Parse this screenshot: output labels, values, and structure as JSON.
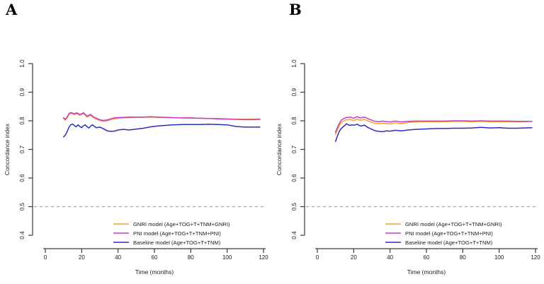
{
  "figure": {
    "background": "#ffffff",
    "panel_labels": [
      "A",
      "B"
    ]
  },
  "chart_data": [
    {
      "panel_label": "A",
      "type": "line",
      "title": "",
      "xlabel": "Time (months)",
      "ylabel": "Concordance index",
      "xlim": [
        0,
        120
      ],
      "ylim": [
        0.4,
        1.0
      ],
      "xticks": [
        0,
        20,
        40,
        60,
        80,
        100,
        120
      ],
      "yticks": [
        0.4,
        0.5,
        0.6,
        0.7,
        0.8,
        0.9,
        1.0
      ],
      "grid": false,
      "legend_position": "bottom-right",
      "reference_line": {
        "y": 0.5,
        "style": "dashed",
        "color": "#ababab"
      },
      "axis_color": "#3a3a3a",
      "x": [
        10,
        11,
        12,
        13,
        14,
        15,
        16,
        17,
        18,
        19,
        20,
        21,
        22,
        23,
        24,
        25,
        26,
        27,
        28,
        30,
        32,
        34,
        36,
        38,
        40,
        43,
        46,
        50,
        54,
        58,
        62,
        66,
        70,
        75,
        80,
        85,
        90,
        95,
        100,
        105,
        110,
        114,
        118
      ],
      "series": [
        {
          "name": "GNRI model (Age+TOG+T+TNM+GNRI)",
          "color": "#F7A229",
          "values": [
            0.808,
            0.802,
            0.81,
            0.822,
            0.826,
            0.824,
            0.821,
            0.825,
            0.823,
            0.819,
            0.822,
            0.825,
            0.819,
            0.813,
            0.817,
            0.819,
            0.813,
            0.809,
            0.806,
            0.801,
            0.798,
            0.8,
            0.804,
            0.807,
            0.809,
            0.81,
            0.811,
            0.812,
            0.812,
            0.813,
            0.812,
            0.811,
            0.811,
            0.81,
            0.809,
            0.809,
            0.808,
            0.808,
            0.807,
            0.806,
            0.806,
            0.806,
            0.807
          ]
        },
        {
          "name": "PNI model (Age+TOG+T+TNM+PNI)",
          "color": "#C73BC3",
          "values": [
            0.811,
            0.805,
            0.813,
            0.825,
            0.829,
            0.827,
            0.824,
            0.828,
            0.826,
            0.822,
            0.825,
            0.828,
            0.822,
            0.816,
            0.82,
            0.822,
            0.816,
            0.812,
            0.809,
            0.804,
            0.801,
            0.803,
            0.807,
            0.81,
            0.811,
            0.812,
            0.813,
            0.813,
            0.813,
            0.814,
            0.813,
            0.812,
            0.811,
            0.81,
            0.81,
            0.809,
            0.808,
            0.807,
            0.806,
            0.805,
            0.804,
            0.804,
            0.805
          ]
        },
        {
          "name": "Baseline model (Age+TOG+T+TNM)",
          "color": "#2C2CC2",
          "values": [
            0.744,
            0.75,
            0.762,
            0.778,
            0.786,
            0.789,
            0.783,
            0.779,
            0.786,
            0.78,
            0.776,
            0.783,
            0.786,
            0.779,
            0.775,
            0.782,
            0.786,
            0.78,
            0.776,
            0.778,
            0.772,
            0.765,
            0.763,
            0.764,
            0.768,
            0.77,
            0.768,
            0.771,
            0.774,
            0.779,
            0.782,
            0.784,
            0.786,
            0.787,
            0.787,
            0.787,
            0.788,
            0.787,
            0.786,
            0.78,
            0.778,
            0.778,
            0.778
          ]
        }
      ]
    },
    {
      "panel_label": "B",
      "type": "line",
      "title": "",
      "xlabel": "Time (months)",
      "ylabel": "Concordance index",
      "xlim": [
        0,
        120
      ],
      "ylim": [
        0.4,
        1.0
      ],
      "xticks": [
        0,
        20,
        40,
        60,
        80,
        100,
        120
      ],
      "yticks": [
        0.4,
        0.5,
        0.6,
        0.7,
        0.8,
        0.9,
        1.0
      ],
      "grid": false,
      "legend_position": "bottom-right",
      "reference_line": {
        "y": 0.5,
        "style": "dashed",
        "color": "#ababab"
      },
      "axis_color": "#3a3a3a",
      "x": [
        10,
        11,
        12,
        13,
        14,
        15,
        16,
        17,
        18,
        19,
        20,
        21,
        22,
        23,
        24,
        25,
        26,
        27,
        28,
        30,
        32,
        34,
        36,
        38,
        40,
        43,
        46,
        50,
        54,
        58,
        62,
        66,
        70,
        75,
        80,
        85,
        90,
        95,
        100,
        105,
        110,
        114,
        118
      ],
      "series": [
        {
          "name": "GNRI model (Age+TOG+T+TNM+GNRI)",
          "color": "#F7A229",
          "values": [
            0.752,
            0.768,
            0.782,
            0.793,
            0.798,
            0.801,
            0.804,
            0.803,
            0.805,
            0.803,
            0.801,
            0.804,
            0.806,
            0.803,
            0.802,
            0.804,
            0.805,
            0.802,
            0.799,
            0.795,
            0.791,
            0.79,
            0.792,
            0.79,
            0.789,
            0.793,
            0.79,
            0.794,
            0.796,
            0.797,
            0.797,
            0.797,
            0.797,
            0.798,
            0.798,
            0.797,
            0.798,
            0.797,
            0.797,
            0.797,
            0.797,
            0.797,
            0.798
          ]
        },
        {
          "name": "PNI model (Age+TOG+T+TNM+PNI)",
          "color": "#C73BC3",
          "values": [
            0.76,
            0.776,
            0.79,
            0.801,
            0.806,
            0.809,
            0.812,
            0.811,
            0.813,
            0.811,
            0.809,
            0.812,
            0.814,
            0.811,
            0.81,
            0.812,
            0.813,
            0.81,
            0.807,
            0.802,
            0.798,
            0.797,
            0.799,
            0.797,
            0.796,
            0.799,
            0.796,
            0.798,
            0.799,
            0.799,
            0.799,
            0.799,
            0.799,
            0.8,
            0.8,
            0.799,
            0.8,
            0.799,
            0.799,
            0.799,
            0.798,
            0.798,
            0.798
          ]
        },
        {
          "name": "Baseline model (Age+TOG+T+TNM)",
          "color": "#2C2CC2",
          "values": [
            0.728,
            0.746,
            0.762,
            0.772,
            0.778,
            0.783,
            0.79,
            0.786,
            0.784,
            0.786,
            0.785,
            0.786,
            0.788,
            0.784,
            0.782,
            0.783,
            0.785,
            0.78,
            0.776,
            0.77,
            0.765,
            0.763,
            0.762,
            0.765,
            0.764,
            0.767,
            0.765,
            0.768,
            0.77,
            0.771,
            0.772,
            0.773,
            0.773,
            0.774,
            0.774,
            0.775,
            0.777,
            0.775,
            0.776,
            0.774,
            0.774,
            0.775,
            0.776
          ]
        }
      ]
    }
  ]
}
